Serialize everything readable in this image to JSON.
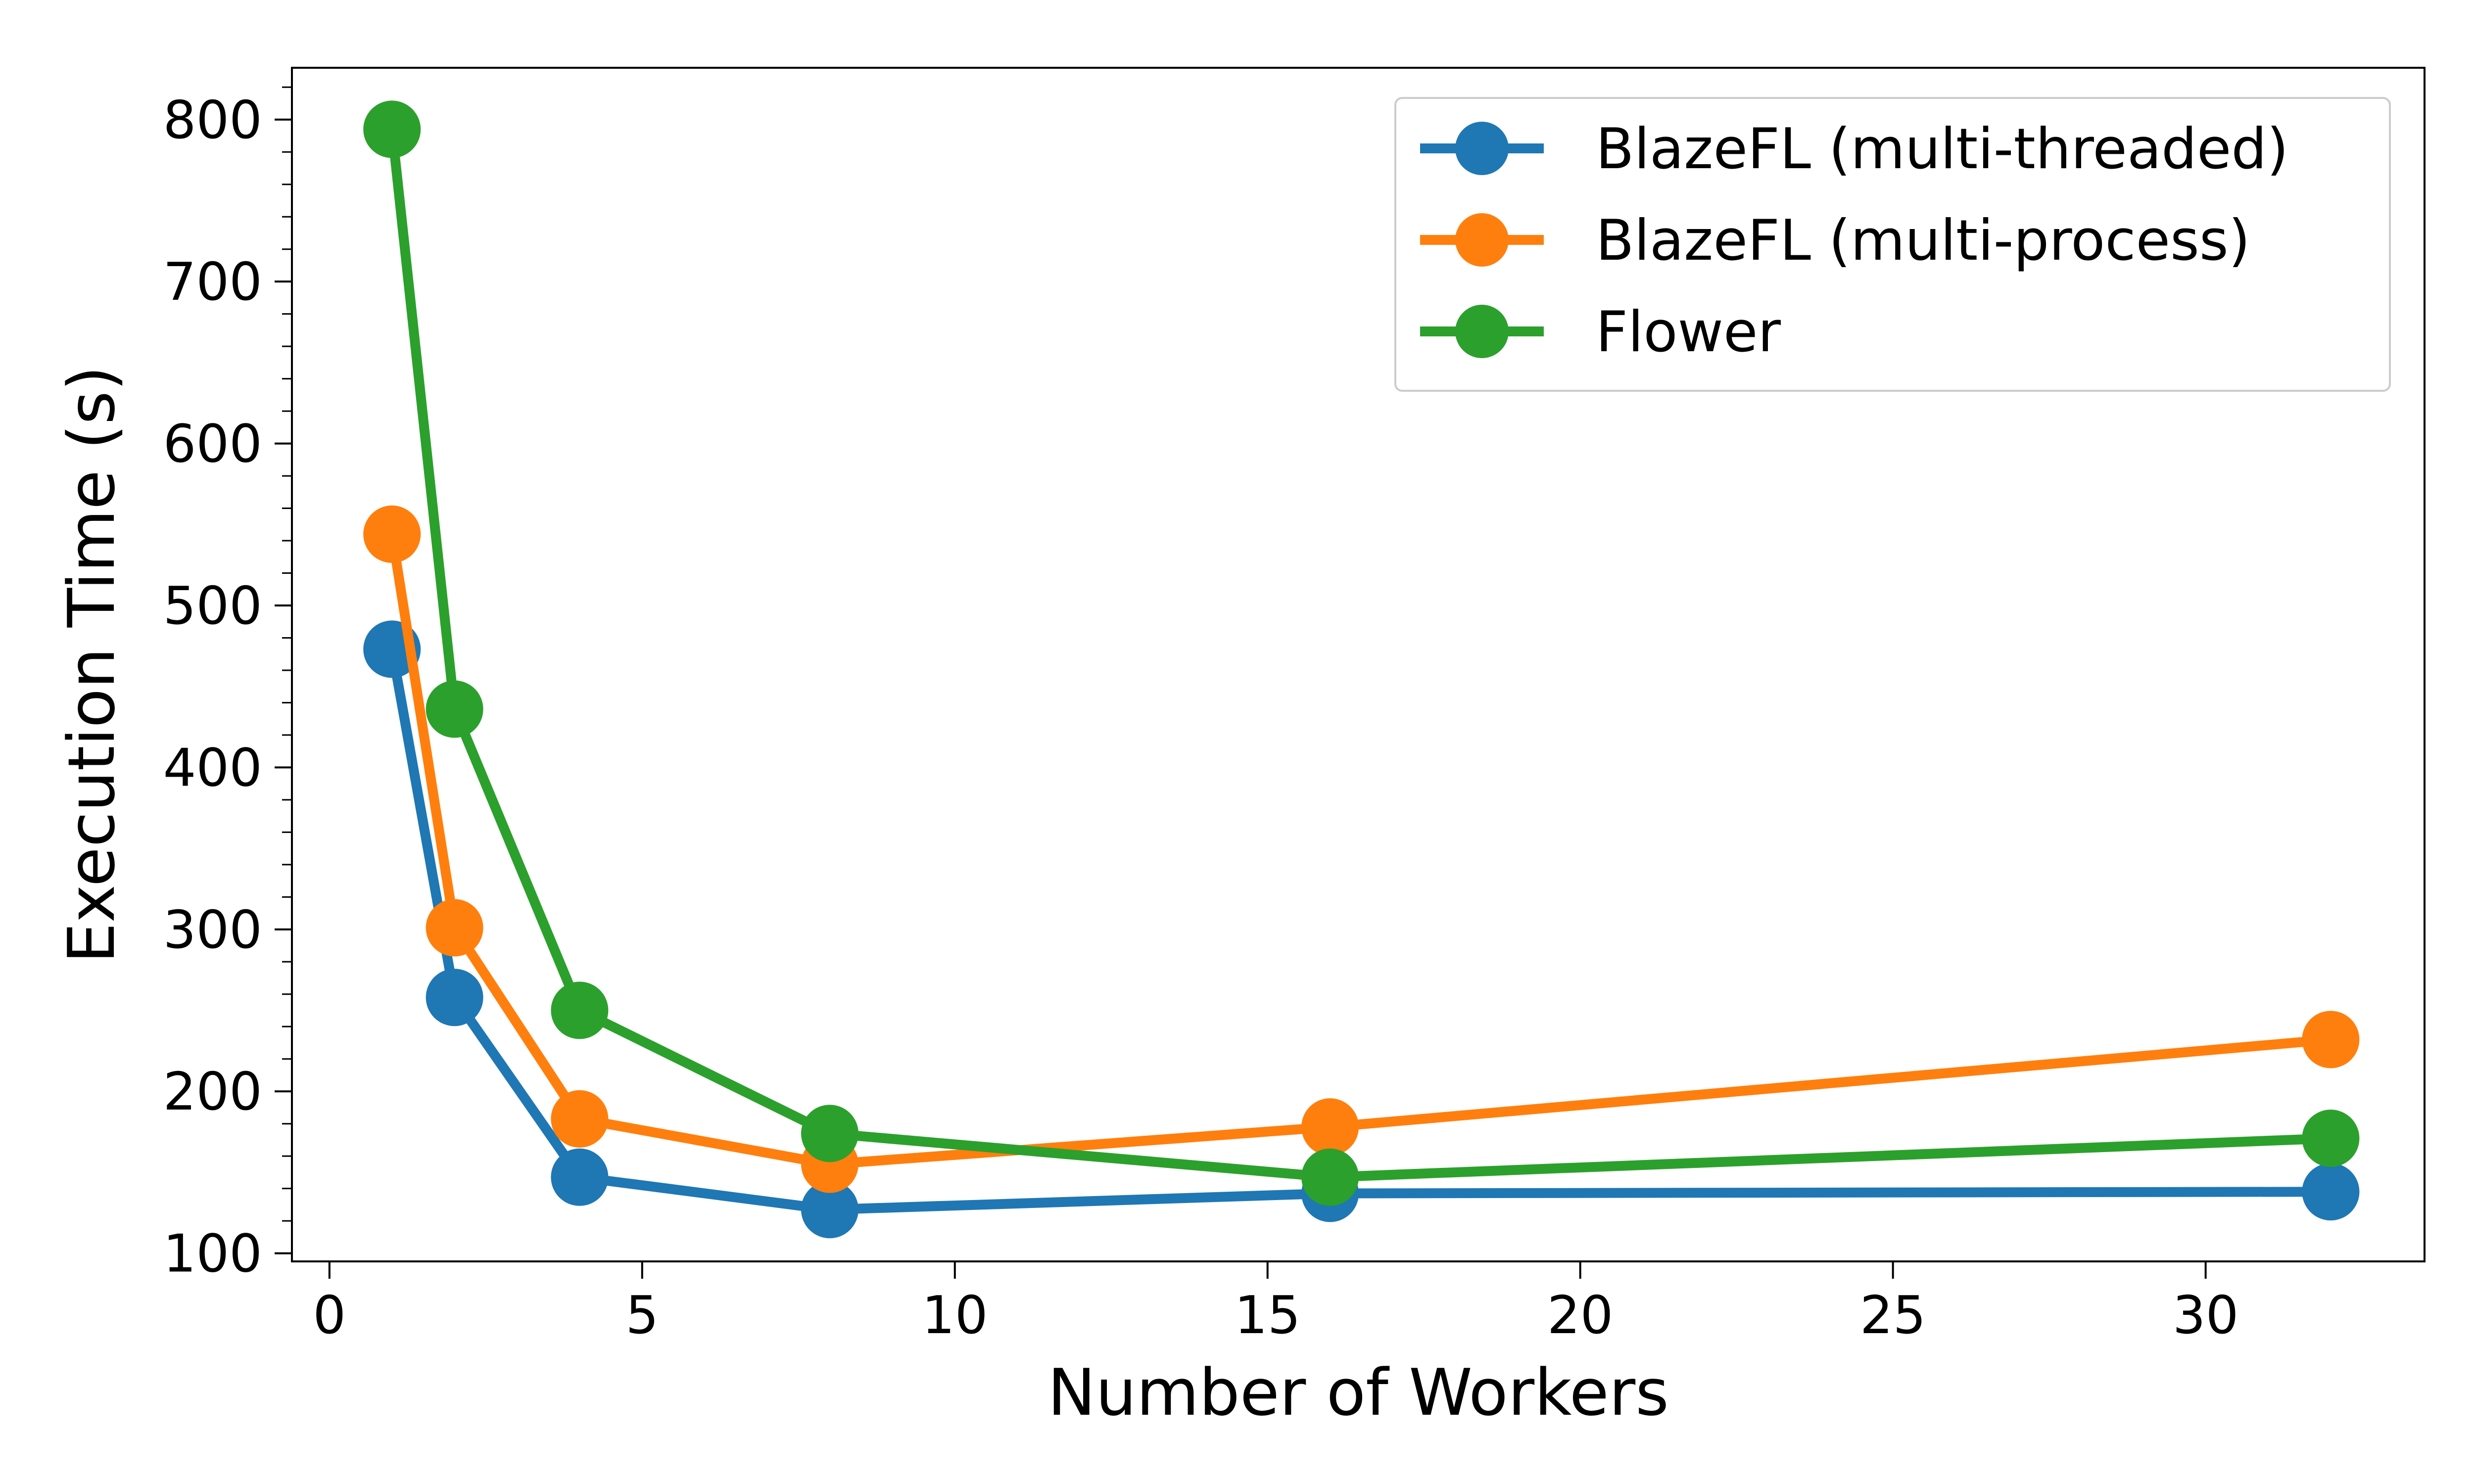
{
  "chart_data": {
    "type": "line",
    "title": "",
    "xlabel": "Number of Workers",
    "ylabel": "Execution Time (s)",
    "xlim": [
      -0.6,
      33.5
    ],
    "ylim": [
      95,
      832
    ],
    "xticks": [
      0,
      5,
      10,
      15,
      20,
      25,
      30
    ],
    "yticks": [
      100,
      200,
      300,
      400,
      500,
      600,
      700,
      800
    ],
    "grid": false,
    "legend_position": "top-right",
    "x": [
      1,
      2,
      4,
      8,
      16,
      32
    ],
    "series": [
      {
        "name": "BlazeFL (multi-threaded)",
        "color": "#1f77b4",
        "values": [
          473,
          258,
          147,
          127,
          137,
          138
        ]
      },
      {
        "name": "BlazeFL (multi-process)",
        "color": "#ff7f0e",
        "values": [
          544,
          301,
          183,
          155,
          178,
          232
        ]
      },
      {
        "name": "Flower",
        "color": "#2ca02c",
        "values": [
          794,
          436,
          250,
          174,
          147,
          171
        ]
      }
    ]
  }
}
